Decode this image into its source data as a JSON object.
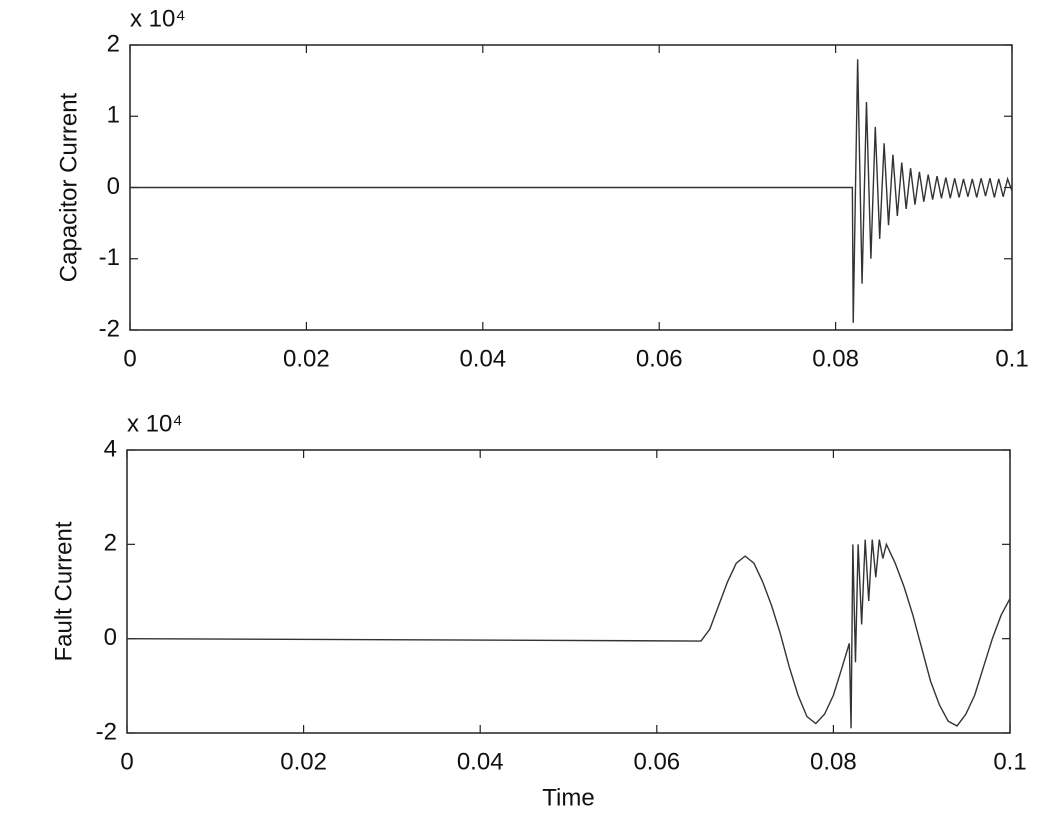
{
  "chart_data": [
    {
      "type": "line",
      "ylabel": "Capacitor Current",
      "y_multiplier": "x 10⁴",
      "xlim": [
        0,
        0.1
      ],
      "xticks": [
        0,
        0.02,
        0.04,
        0.06,
        0.08,
        0.1
      ],
      "ylim": [
        -2,
        2
      ],
      "yticks": [
        -2,
        -1,
        0,
        1,
        2
      ],
      "grid": false,
      "series": [
        {
          "color": "#333333",
          "x": [
            0,
            0.0819,
            0.082,
            0.0825,
            0.083,
            0.0835,
            0.084,
            0.0845,
            0.085,
            0.0855,
            0.086,
            0.0865,
            0.087,
            0.0875,
            0.088,
            0.0885,
            0.089,
            0.0895,
            0.09,
            0.0905,
            0.091,
            0.0915,
            0.092,
            0.0925,
            0.093,
            0.0935,
            0.094,
            0.0945,
            0.095,
            0.0955,
            0.096,
            0.0965,
            0.097,
            0.0975,
            0.098,
            0.0985,
            0.099,
            0.0995,
            0.1
          ],
          "values": [
            0,
            0,
            -1.9,
            1.8,
            -1.35,
            1.2,
            -1.0,
            0.85,
            -0.72,
            0.62,
            -0.53,
            0.46,
            -0.4,
            0.35,
            -0.3,
            0.27,
            -0.24,
            0.22,
            -0.2,
            0.18,
            -0.17,
            0.16,
            -0.15,
            0.14,
            -0.15,
            0.13,
            -0.14,
            0.12,
            -0.13,
            0.12,
            -0.14,
            0.13,
            -0.12,
            0.13,
            -0.14,
            0.12,
            -0.13,
            0.12,
            -0.05
          ]
        }
      ]
    },
    {
      "type": "line",
      "ylabel": "Fault Current",
      "xlabel": "Time",
      "y_multiplier": "x 10⁴",
      "xlim": [
        0,
        0.1
      ],
      "xticks": [
        0,
        0.02,
        0.04,
        0.06,
        0.08,
        0.1
      ],
      "ylim": [
        -2,
        4
      ],
      "yticks": [
        -2,
        0,
        2,
        4
      ],
      "grid": false,
      "series": [
        {
          "color": "#333333",
          "x": [
            0,
            0.065,
            0.066,
            0.067,
            0.068,
            0.069,
            0.07,
            0.071,
            0.072,
            0.073,
            0.074,
            0.075,
            0.076,
            0.077,
            0.078,
            0.079,
            0.08,
            0.081,
            0.0818,
            0.082,
            0.0822,
            0.0825,
            0.0828,
            0.0832,
            0.0836,
            0.084,
            0.0844,
            0.0848,
            0.0852,
            0.0856,
            0.086,
            0.087,
            0.088,
            0.089,
            0.09,
            0.091,
            0.092,
            0.093,
            0.094,
            0.095,
            0.096,
            0.097,
            0.098,
            0.099,
            0.1
          ],
          "values": [
            0,
            -0.05,
            0.2,
            0.7,
            1.2,
            1.6,
            1.75,
            1.6,
            1.2,
            0.7,
            0.1,
            -0.6,
            -1.2,
            -1.65,
            -1.8,
            -1.6,
            -1.2,
            -0.6,
            -0.1,
            -1.9,
            2.0,
            -0.5,
            2.0,
            0.3,
            2.1,
            0.8,
            2.1,
            1.3,
            2.1,
            1.7,
            2.0,
            1.6,
            1.1,
            0.5,
            -0.2,
            -0.9,
            -1.4,
            -1.75,
            -1.85,
            -1.6,
            -1.2,
            -0.6,
            0,
            0.5,
            0.85
          ]
        }
      ]
    }
  ]
}
